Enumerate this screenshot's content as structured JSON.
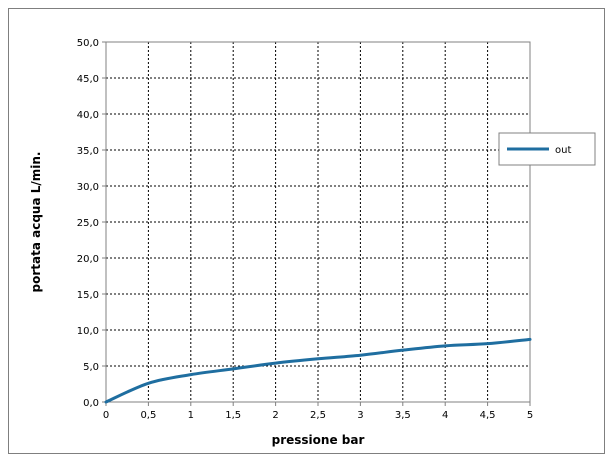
{
  "chart_data": {
    "type": "line",
    "title": "",
    "xlabel": "pressione bar",
    "ylabel": "portata acqua  L/min.",
    "xlim": [
      0,
      5
    ],
    "ylim": [
      0,
      50
    ],
    "x_ticks": [
      "0",
      "0,5",
      "1",
      "1,5",
      "2",
      "2,5",
      "3",
      "3,5",
      "4",
      "4,5",
      "5"
    ],
    "y_ticks": [
      "0,0",
      "5,0",
      "10,0",
      "15,0",
      "20,0",
      "25,0",
      "30,0",
      "35,0",
      "40,0",
      "45,0",
      "50,0"
    ],
    "grid": true,
    "legend_position": "right",
    "series": [
      {
        "name": "out",
        "color": "#1f6ea0",
        "x": [
          0,
          0.5,
          1,
          1.5,
          2,
          2.5,
          3,
          3.5,
          4,
          4.5,
          5
        ],
        "y": [
          0.0,
          2.6,
          3.8,
          4.6,
          5.4,
          6.0,
          6.5,
          7.2,
          7.8,
          8.1,
          8.7
        ]
      }
    ]
  }
}
